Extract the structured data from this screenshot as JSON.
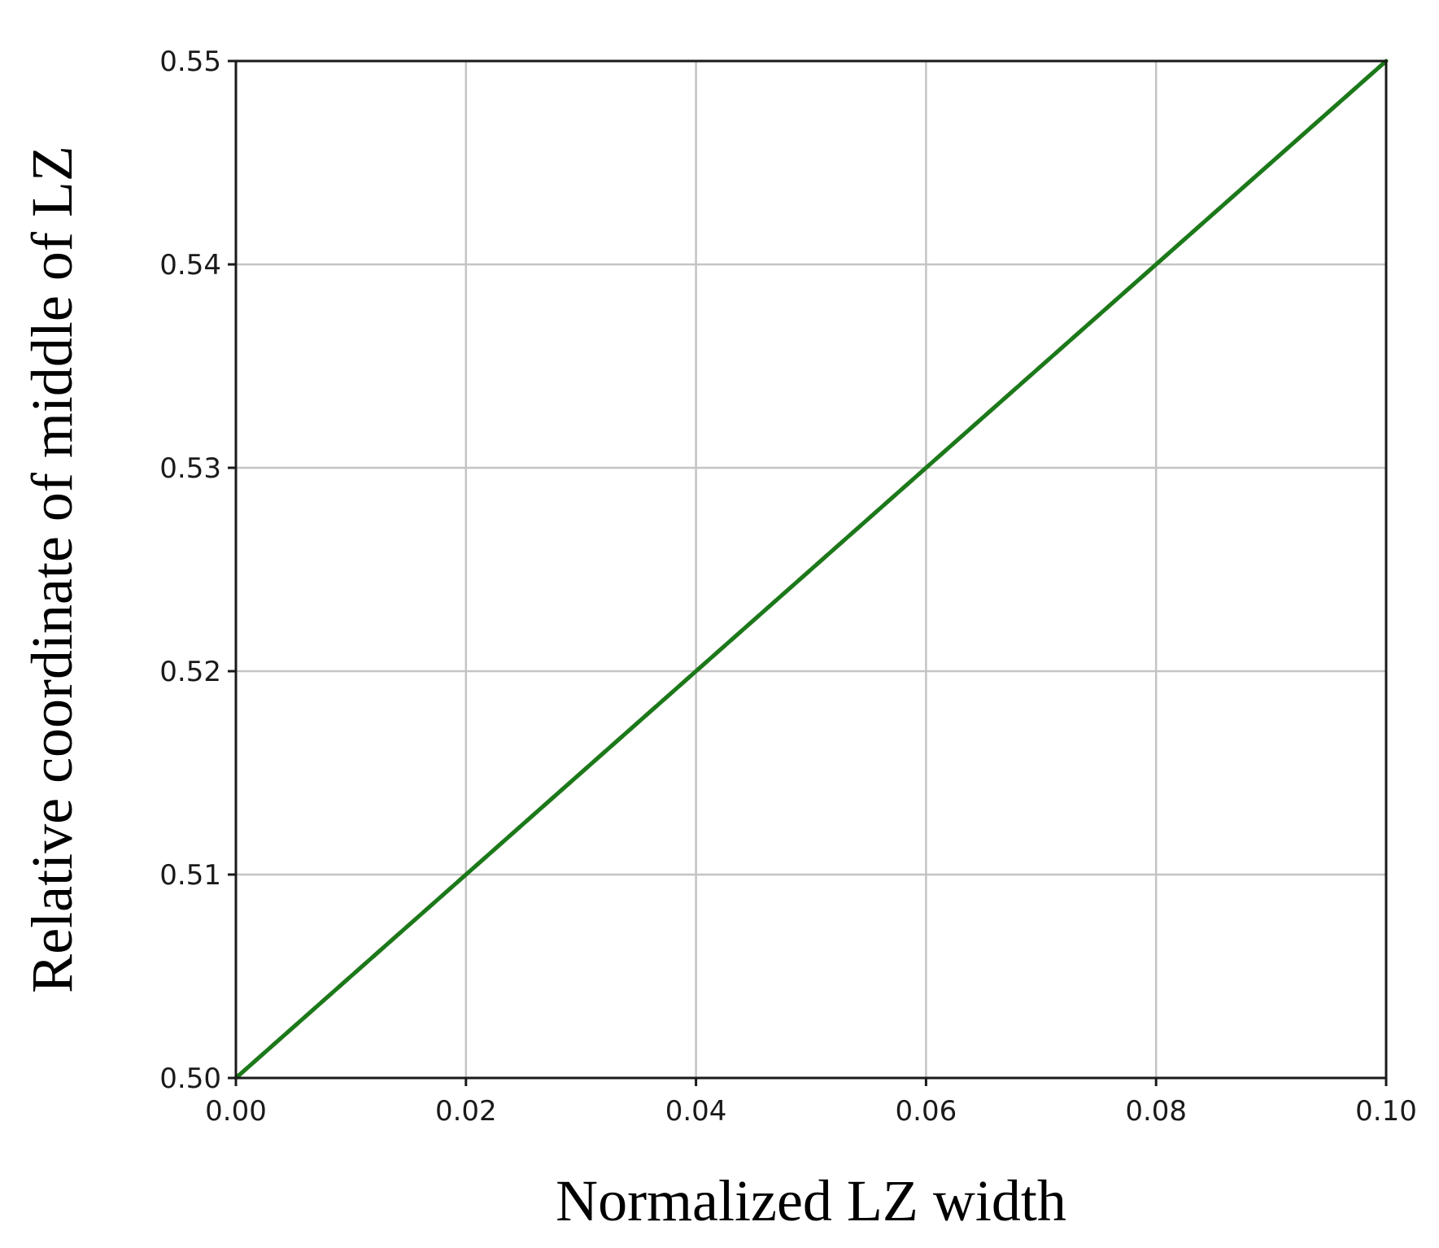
{
  "chart_data": {
    "type": "line",
    "xlabel": "Normalized LZ width",
    "ylabel": "Relative coordinate of middle of LZ",
    "xlim": [
      0.0,
      0.1
    ],
    "ylim": [
      0.5,
      0.55
    ],
    "x_ticks": [
      "0.00",
      "0.02",
      "0.04",
      "0.06",
      "0.08",
      "0.10"
    ],
    "y_ticks": [
      "0.50",
      "0.51",
      "0.52",
      "0.53",
      "0.54",
      "0.55"
    ],
    "grid": true,
    "series": [
      {
        "color": "#c0392b",
        "style": "dashed",
        "x": [
          0.0,
          0.1
        ],
        "y": [
          0.5,
          0.55
        ]
      },
      {
        "color": "#1a7a1a",
        "style": "solid",
        "x": [
          0.0,
          0.1
        ],
        "y": [
          0.5,
          0.55
        ]
      }
    ]
  }
}
